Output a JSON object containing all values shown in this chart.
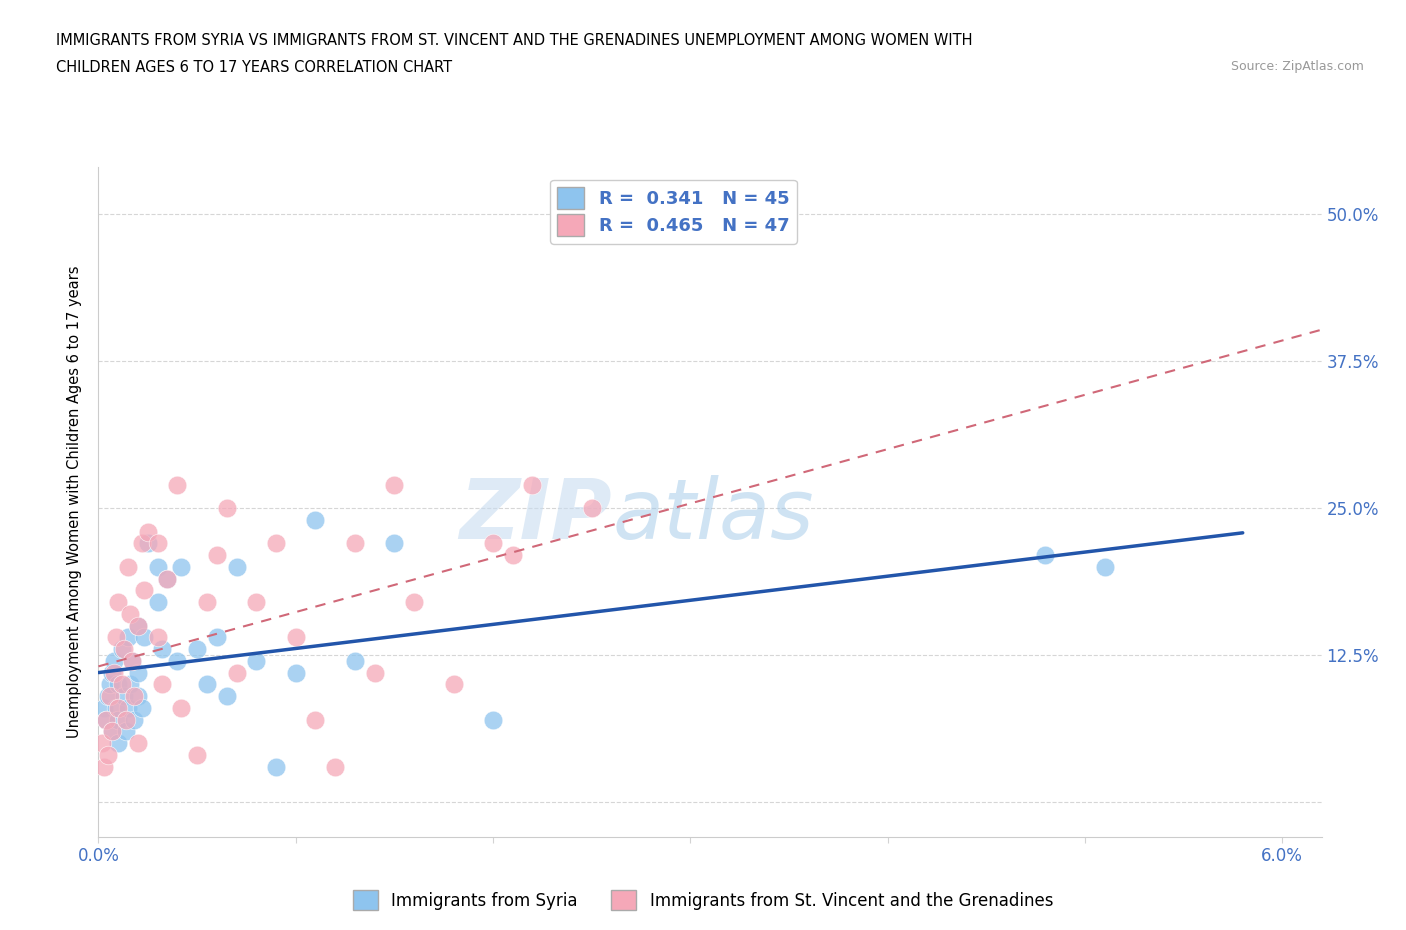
{
  "title_line1": "IMMIGRANTS FROM SYRIA VS IMMIGRANTS FROM ST. VINCENT AND THE GRENADINES UNEMPLOYMENT AMONG WOMEN WITH",
  "title_line2": "CHILDREN AGES 6 TO 17 YEARS CORRELATION CHART",
  "source": "Source: ZipAtlas.com",
  "ylabel": "Unemployment Among Women with Children Ages 6 to 17 years",
  "xlim": [
    0.0,
    0.062
  ],
  "ylim": [
    -0.03,
    0.54
  ],
  "R_syria": 0.341,
  "N_syria": 45,
  "R_svg": 0.465,
  "N_svg": 47,
  "legend_label_syria": "Immigrants from Syria",
  "legend_label_svg": "Immigrants from St. Vincent and the Grenadines",
  "color_syria": "#8EC4EE",
  "color_svg": "#F5A8B8",
  "trendline_color_syria": "#2255AA",
  "trendline_color_svg": "#D06878",
  "background_color": "#FFFFFF",
  "watermark_zip_color": "#C8DCF0",
  "watermark_atlas_color": "#A0C8E8",
  "syria_x": [
    0.0003,
    0.0004,
    0.0005,
    0.0006,
    0.0007,
    0.0007,
    0.0008,
    0.0009,
    0.001,
    0.001,
    0.001,
    0.0012,
    0.0013,
    0.0014,
    0.0015,
    0.0015,
    0.0016,
    0.0017,
    0.0018,
    0.002,
    0.002,
    0.002,
    0.0022,
    0.0023,
    0.0025,
    0.003,
    0.003,
    0.0032,
    0.0035,
    0.004,
    0.0042,
    0.005,
    0.0055,
    0.006,
    0.0065,
    0.007,
    0.008,
    0.009,
    0.01,
    0.011,
    0.013,
    0.015,
    0.02,
    0.048,
    0.051
  ],
  "syria_y": [
    0.08,
    0.07,
    0.09,
    0.1,
    0.06,
    0.11,
    0.12,
    0.08,
    0.05,
    0.07,
    0.1,
    0.13,
    0.09,
    0.06,
    0.08,
    0.14,
    0.1,
    0.12,
    0.07,
    0.09,
    0.11,
    0.15,
    0.08,
    0.14,
    0.22,
    0.17,
    0.2,
    0.13,
    0.19,
    0.12,
    0.2,
    0.13,
    0.1,
    0.14,
    0.09,
    0.2,
    0.12,
    0.03,
    0.11,
    0.24,
    0.12,
    0.22,
    0.07,
    0.21,
    0.2
  ],
  "svg_x": [
    0.0002,
    0.0003,
    0.0004,
    0.0005,
    0.0006,
    0.0007,
    0.0008,
    0.0009,
    0.001,
    0.001,
    0.0012,
    0.0013,
    0.0014,
    0.0015,
    0.0016,
    0.0017,
    0.0018,
    0.002,
    0.002,
    0.0022,
    0.0023,
    0.0025,
    0.003,
    0.003,
    0.0032,
    0.0035,
    0.004,
    0.0042,
    0.005,
    0.0055,
    0.006,
    0.0065,
    0.007,
    0.008,
    0.009,
    0.01,
    0.011,
    0.012,
    0.013,
    0.014,
    0.015,
    0.016,
    0.018,
    0.02,
    0.021,
    0.022,
    0.025
  ],
  "svg_y": [
    0.05,
    0.03,
    0.07,
    0.04,
    0.09,
    0.06,
    0.11,
    0.14,
    0.08,
    0.17,
    0.1,
    0.13,
    0.07,
    0.2,
    0.16,
    0.12,
    0.09,
    0.05,
    0.15,
    0.22,
    0.18,
    0.23,
    0.14,
    0.22,
    0.1,
    0.19,
    0.27,
    0.08,
    0.04,
    0.17,
    0.21,
    0.25,
    0.11,
    0.17,
    0.22,
    0.14,
    0.07,
    0.03,
    0.22,
    0.11,
    0.27,
    0.17,
    0.1,
    0.22,
    0.21,
    0.27,
    0.25
  ]
}
